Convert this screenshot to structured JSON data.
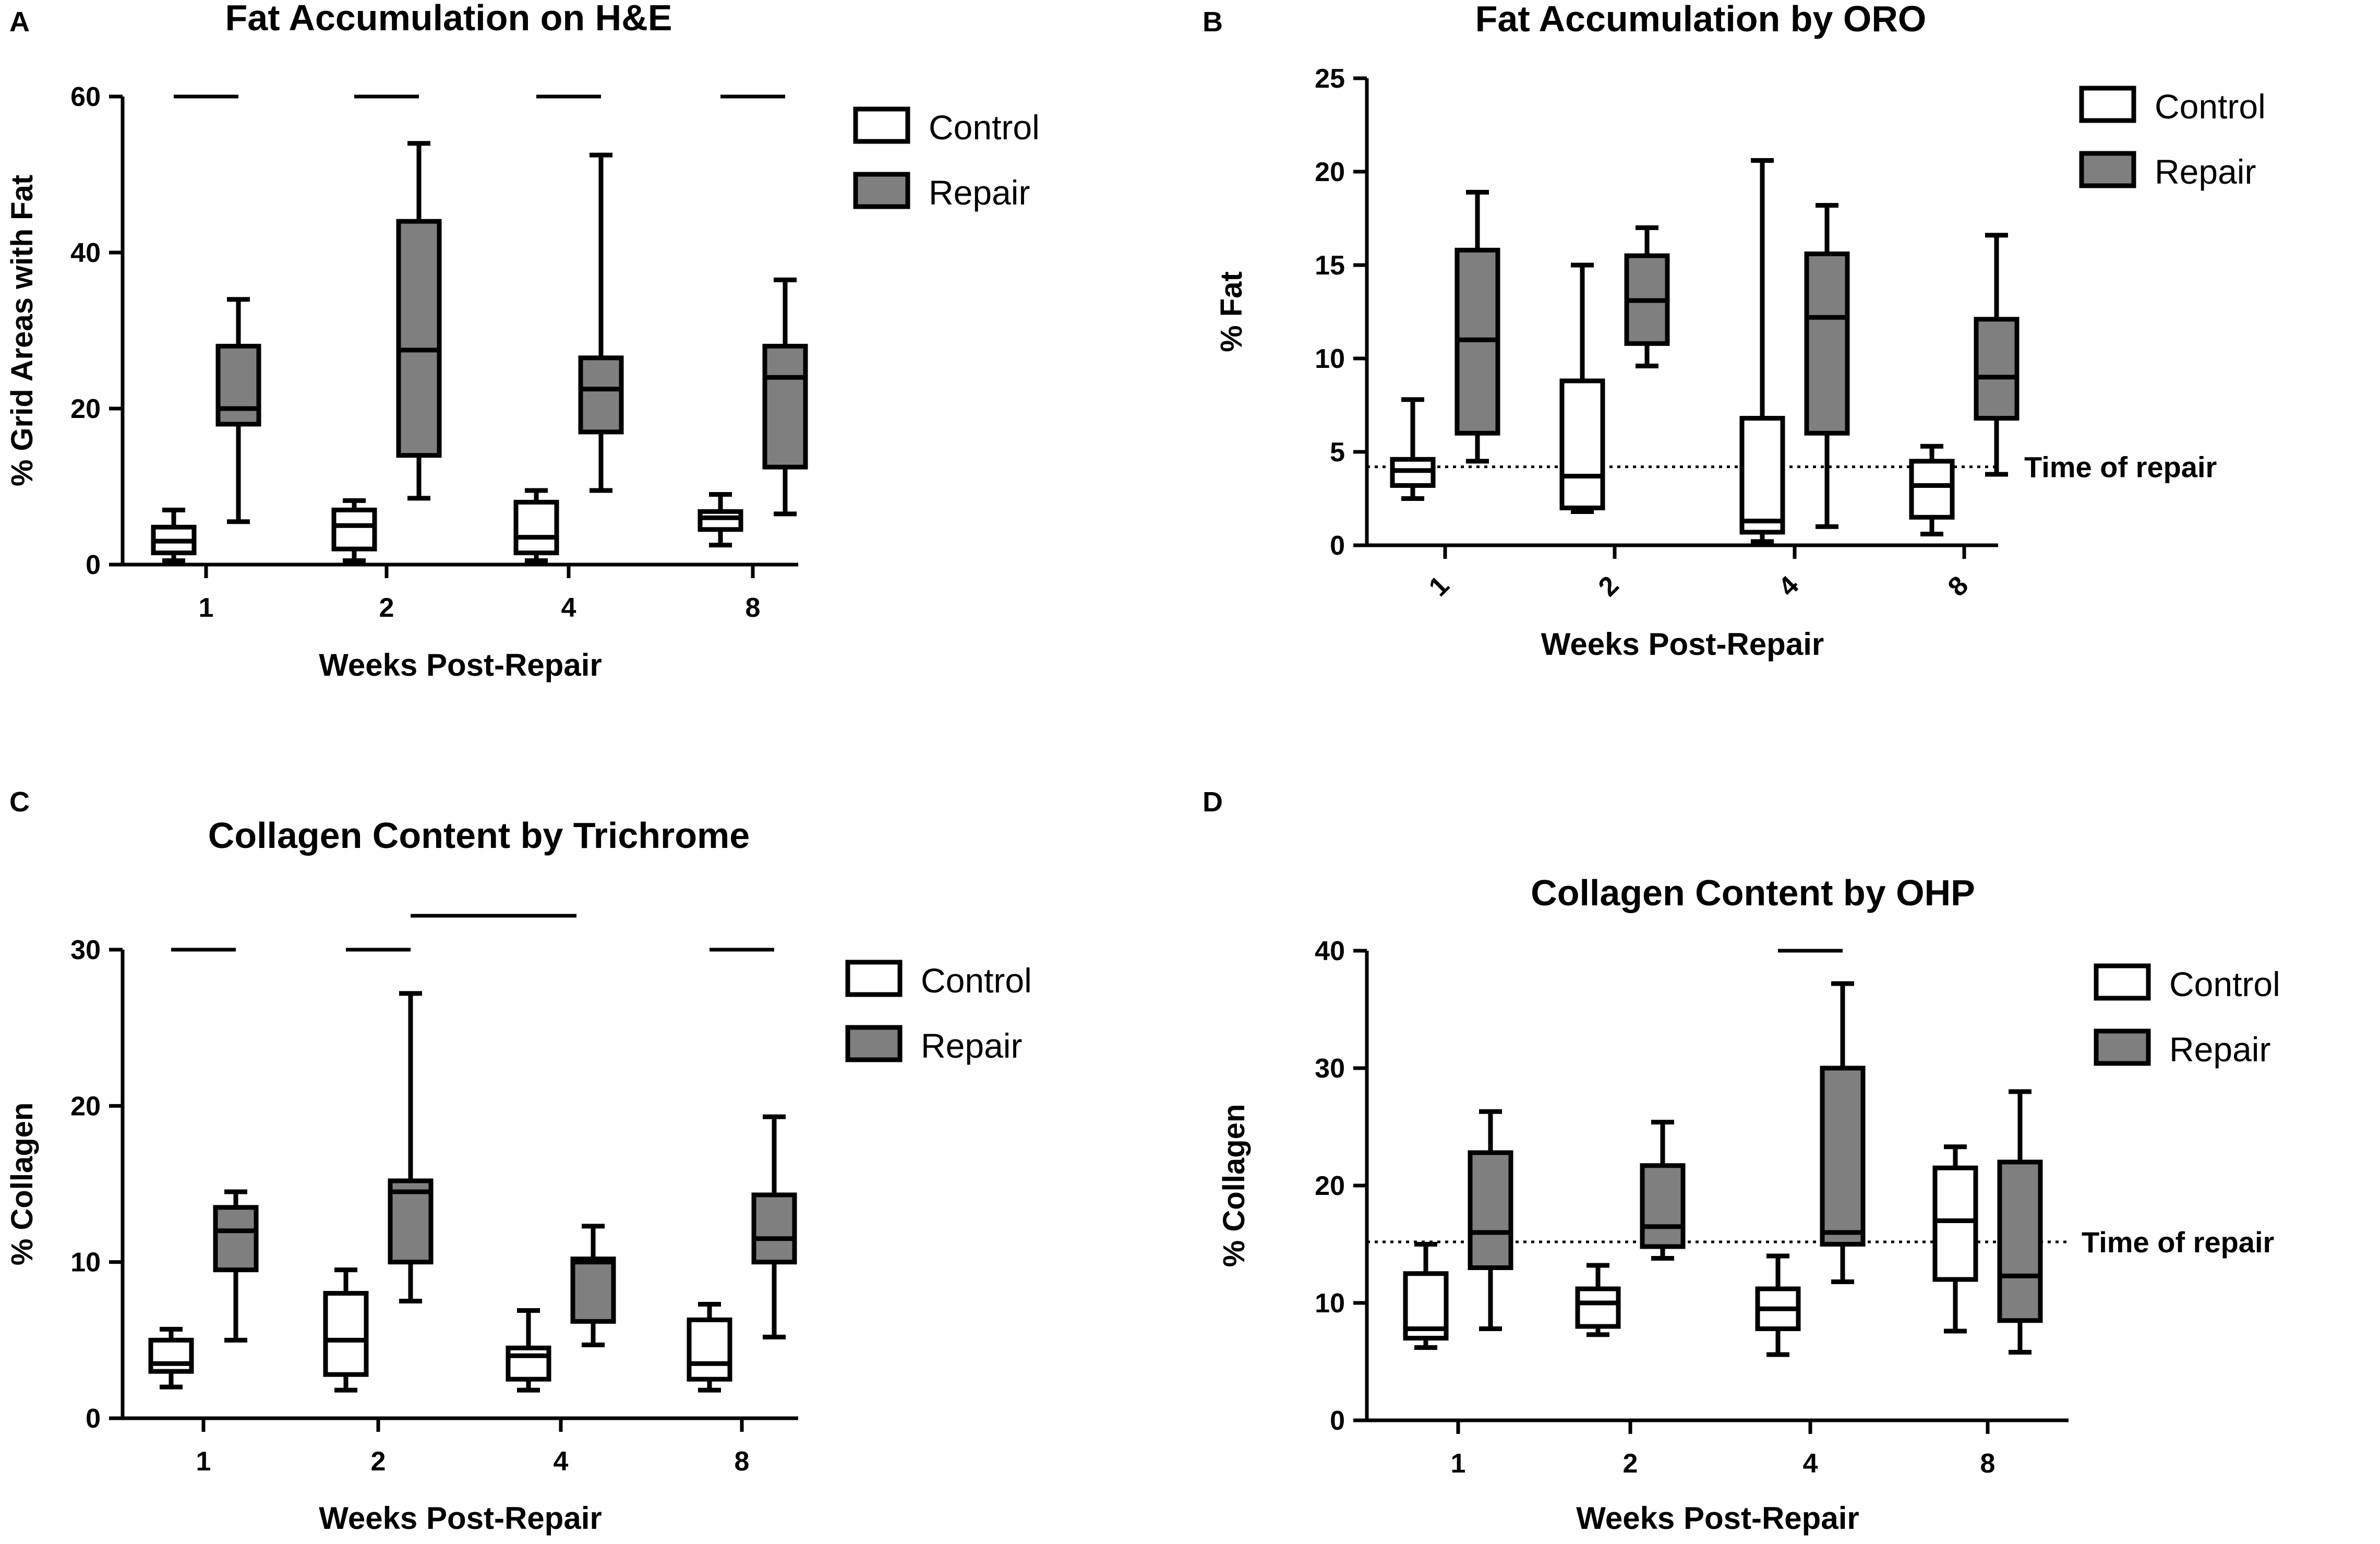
{
  "colors": {
    "control_fill": "#ffffff",
    "repair_fill": "#7f7f7f",
    "stroke": "#000000"
  },
  "chart_data": [
    {
      "panel": "A",
      "type": "box",
      "title": "Fat Accumulation on H&E",
      "xlabel": "Weeks Post-Repair",
      "ylabel": "% Grid Areas with Fat",
      "categories": [
        "1",
        "2",
        "4",
        "8"
      ],
      "ylim": [
        0,
        60
      ],
      "yticks": [
        0,
        20,
        40,
        60
      ],
      "legend": [
        "Control",
        "Repair"
      ],
      "legend_position": "top-right",
      "series": [
        {
          "name": "Control",
          "boxes": [
            {
              "min": 0.5,
              "q1": 1.5,
              "median": 3.0,
              "q3": 4.8,
              "max": 7.0
            },
            {
              "min": 0.5,
              "q1": 2.0,
              "median": 5.0,
              "q3": 7.0,
              "max": 8.2
            },
            {
              "min": 0.5,
              "q1": 1.5,
              "median": 3.5,
              "q3": 8.0,
              "max": 9.5
            },
            {
              "min": 2.5,
              "q1": 4.5,
              "median": 6.0,
              "q3": 6.8,
              "max": 9.0
            }
          ]
        },
        {
          "name": "Repair",
          "boxes": [
            {
              "min": 5.5,
              "q1": 18.0,
              "median": 20.0,
              "q3": 28.0,
              "max": 34.0
            },
            {
              "min": 8.5,
              "q1": 14.0,
              "median": 27.5,
              "q3": 44.0,
              "max": 54.0
            },
            {
              "min": 9.5,
              "q1": 17.0,
              "median": 22.5,
              "q3": 26.5,
              "max": 52.5
            },
            {
              "min": 6.5,
              "q1": 12.5,
              "median": 24.0,
              "q3": 28.0,
              "max": 36.5
            }
          ]
        }
      ],
      "significance_bars": [
        {
          "from": "1",
          "to": "1"
        },
        {
          "from": "2",
          "to": "2"
        },
        {
          "from": "4",
          "to": "4"
        },
        {
          "from": "8",
          "to": "8"
        }
      ]
    },
    {
      "panel": "B",
      "type": "box",
      "title": "Fat Accumulation by ORO",
      "xlabel": "Weeks Post-Repair",
      "ylabel": "% Fat",
      "categories": [
        "1",
        "2",
        "4",
        "8"
      ],
      "ylim": [
        0,
        25
      ],
      "yticks": [
        0,
        5,
        10,
        15,
        20,
        25
      ],
      "legend": [
        "Control",
        "Repair"
      ],
      "legend_position": "top-right",
      "reference_line": {
        "value": 4.2,
        "label": "Time of repair"
      },
      "series": [
        {
          "name": "Control",
          "boxes": [
            {
              "min": 2.5,
              "q1": 3.2,
              "median": 4.0,
              "q3": 4.6,
              "max": 7.8
            },
            {
              "min": 1.8,
              "q1": 2.0,
              "median": 3.7,
              "q3": 8.8,
              "max": 15.0
            },
            {
              "min": 0.2,
              "q1": 0.7,
              "median": 1.3,
              "q3": 6.8,
              "max": 20.6
            },
            {
              "min": 0.6,
              "q1": 1.5,
              "median": 3.2,
              "q3": 4.5,
              "max": 5.3
            }
          ]
        },
        {
          "name": "Repair",
          "boxes": [
            {
              "min": 4.5,
              "q1": 6.0,
              "median": 11.0,
              "q3": 15.8,
              "max": 18.9
            },
            {
              "min": 9.6,
              "q1": 10.8,
              "median": 13.1,
              "q3": 15.5,
              "max": 17.0
            },
            {
              "min": 1.0,
              "q1": 6.0,
              "median": 12.2,
              "q3": 15.6,
              "max": 18.2
            },
            {
              "min": 3.8,
              "q1": 6.8,
              "median": 9.0,
              "q3": 12.1,
              "max": 16.6
            }
          ]
        }
      ]
    },
    {
      "panel": "C",
      "type": "box",
      "title": "Collagen Content by Trichrome",
      "xlabel": "Weeks Post-Repair",
      "ylabel": "% Collagen",
      "categories": [
        "1",
        "2",
        "4",
        "8"
      ],
      "ylim": [
        0,
        30
      ],
      "yticks": [
        0,
        10,
        20,
        30
      ],
      "legend": [
        "Control",
        "Repair"
      ],
      "legend_position": "top-right",
      "series": [
        {
          "name": "Control",
          "boxes": [
            {
              "min": 2.0,
              "q1": 3.0,
              "median": 3.5,
              "q3": 5.0,
              "max": 5.7
            },
            {
              "min": 1.8,
              "q1": 2.8,
              "median": 5.0,
              "q3": 8.0,
              "max": 9.5
            },
            {
              "min": 1.8,
              "q1": 2.5,
              "median": 4.0,
              "q3": 4.5,
              "max": 6.9
            },
            {
              "min": 1.8,
              "q1": 2.5,
              "median": 3.5,
              "q3": 6.3,
              "max": 7.3
            }
          ]
        },
        {
          "name": "Repair",
          "boxes": [
            {
              "min": 5.0,
              "q1": 9.5,
              "median": 12.0,
              "q3": 13.5,
              "max": 14.5
            },
            {
              "min": 7.5,
              "q1": 10.0,
              "median": 14.5,
              "q3": 15.2,
              "max": 27.2
            },
            {
              "min": 4.7,
              "q1": 6.2,
              "median": 10.0,
              "q3": 10.2,
              "max": 12.3
            },
            {
              "min": 5.2,
              "q1": 10.0,
              "median": 11.5,
              "q3": 14.3,
              "max": 19.3
            }
          ]
        }
      ],
      "significance_bars": [
        {
          "from": "1",
          "to": "1"
        },
        {
          "from": "2",
          "to": "2"
        },
        {
          "from": "2",
          "to": "4"
        },
        {
          "from": "8",
          "to": "8"
        }
      ]
    },
    {
      "panel": "D",
      "type": "box",
      "title": "Collagen Content by OHP",
      "xlabel": "Weeks Post-Repair",
      "ylabel": "% Collagen",
      "categories": [
        "1",
        "2",
        "4",
        "8"
      ],
      "ylim": [
        0,
        40
      ],
      "yticks": [
        0,
        10,
        20,
        30,
        40
      ],
      "legend": [
        "Control",
        "Repair"
      ],
      "legend_position": "top-right",
      "reference_line": {
        "value": 15.2,
        "label": "Time of repair"
      },
      "series": [
        {
          "name": "Control",
          "boxes": [
            {
              "min": 6.2,
              "q1": 7.0,
              "median": 7.8,
              "q3": 12.5,
              "max": 15.0
            },
            {
              "min": 7.3,
              "q1": 8.0,
              "median": 10.0,
              "q3": 11.2,
              "max": 13.2
            },
            {
              "min": 5.6,
              "q1": 7.8,
              "median": 9.5,
              "q3": 11.2,
              "max": 14.0
            },
            {
              "min": 7.6,
              "q1": 12.0,
              "median": 17.0,
              "q3": 21.5,
              "max": 23.3
            }
          ]
        },
        {
          "name": "Repair",
          "boxes": [
            {
              "min": 7.8,
              "q1": 13.0,
              "median": 16.0,
              "q3": 22.8,
              "max": 26.3
            },
            {
              "min": 13.8,
              "q1": 14.8,
              "median": 16.5,
              "q3": 21.7,
              "max": 25.4
            },
            {
              "min": 11.8,
              "q1": 15.0,
              "median": 16.0,
              "q3": 30.0,
              "max": 37.2
            },
            {
              "min": 5.8,
              "q1": 8.5,
              "median": 12.3,
              "q3": 22.0,
              "max": 28.0
            }
          ]
        }
      ],
      "significance_bars": [
        {
          "from": "4",
          "to": "4"
        }
      ]
    }
  ]
}
